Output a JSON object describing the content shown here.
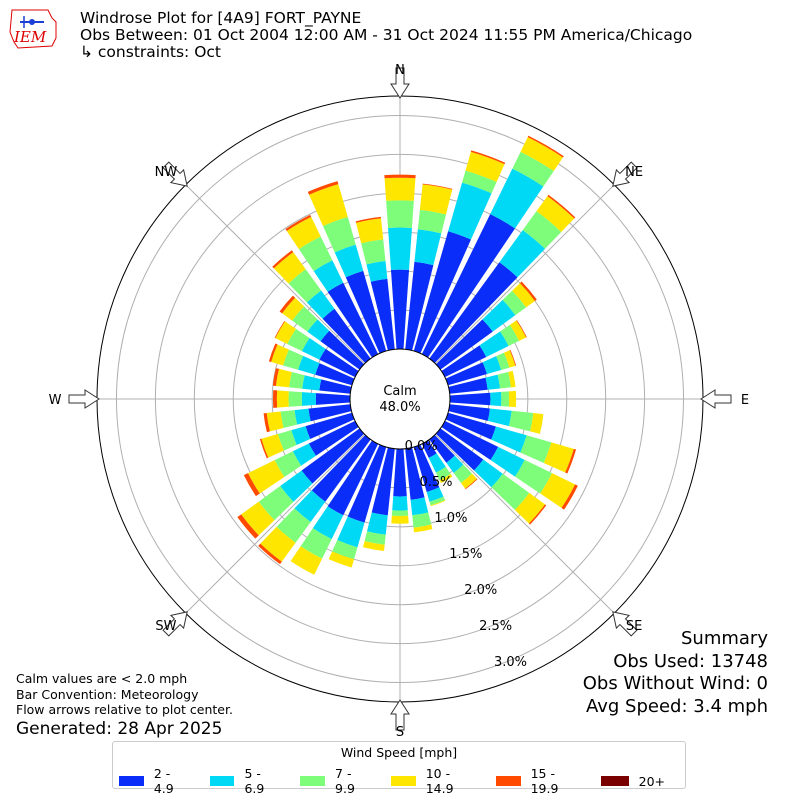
{
  "header": {
    "title": "Windrose Plot for [4A9] FORT_PAYNE",
    "obs_between": "Obs Between: 01 Oct 2004 12:00 AM - 31 Oct 2024 11:55 PM America/Chicago",
    "constraints": "↳ constraints: Oct"
  },
  "logo_text": "IEM",
  "notes": {
    "calm_values": "Calm values are < 2.0 mph",
    "bar_convention": "Bar Convention: Meteorology",
    "flow_arrows": "Flow arrows relative to plot center."
  },
  "generated": "Generated: 28 Apr 2025",
  "summary": {
    "title": "Summary",
    "obs_used": "Obs Used: 13748",
    "obs_without_wind": "Obs Without Wind: 0",
    "avg_speed": "Avg Speed: 3.4 mph"
  },
  "legend": {
    "title": "Wind Speed [mph]",
    "items": [
      {
        "label": "2 - 4.9",
        "color": "#0a2dfa"
      },
      {
        "label": "5 - 6.9",
        "color": "#00d9f5"
      },
      {
        "label": "7 - 9.9",
        "color": "#7dfd7a"
      },
      {
        "label": "10 - 14.9",
        "color": "#ffe600"
      },
      {
        "label": "15 - 19.9",
        "color": "#ff4a00"
      },
      {
        "label": "20+",
        "color": "#7a0000"
      }
    ]
  },
  "chart_data": {
    "type": "windrose",
    "calm_label": "Calm",
    "calm_value": "48.0%",
    "radial_tick_labels": [
      "0.0%",
      "0.5%",
      "1.0%",
      "1.5%",
      "2.0%",
      "2.5%",
      "3.0%"
    ],
    "radial_ticks": [
      0,
      0.5,
      1.0,
      1.5,
      2.0,
      2.5,
      3.0
    ],
    "rmax": 3.25,
    "compass_labels": [
      "N",
      "NE",
      "E",
      "SE",
      "S",
      "SW",
      "W",
      "NW"
    ],
    "speed_bins": [
      "2 - 4.9",
      "5 - 6.9",
      "7 - 9.9",
      "10 - 14.9",
      "15 - 19.9",
      "20+"
    ],
    "directions_deg": [
      0,
      10,
      20,
      30,
      40,
      50,
      60,
      70,
      80,
      90,
      100,
      110,
      120,
      130,
      140,
      150,
      160,
      170,
      180,
      190,
      200,
      210,
      220,
      230,
      240,
      250,
      260,
      270,
      280,
      290,
      300,
      310,
      320,
      330,
      340,
      350
    ],
    "cumulative": [
      [
        1.02,
        1.56,
        1.91,
        2.2,
        2.24,
        2.24
      ],
      [
        1.13,
        1.55,
        1.8,
        2.13,
        2.14,
        2.14
      ],
      [
        1.6,
        2.25,
        2.41,
        2.66,
        2.68,
        2.68
      ],
      [
        2.0,
        2.65,
        2.89,
        3.1,
        3.12,
        3.12
      ],
      [
        1.53,
        2.04,
        2.34,
        2.58,
        2.6,
        2.6
      ],
      [
        0.83,
        1.19,
        1.36,
        1.5,
        1.53,
        1.53
      ],
      [
        0.59,
        0.91,
        1.06,
        1.16,
        1.17,
        1.17
      ],
      [
        0.52,
        0.71,
        0.82,
        0.9,
        0.91,
        0.91
      ],
      [
        0.49,
        0.65,
        0.79,
        0.85,
        0.85,
        0.85
      ],
      [
        0.52,
        0.66,
        0.76,
        0.85,
        0.85,
        0.85
      ],
      [
        0.52,
        0.8,
        1.08,
        1.21,
        1.21,
        1.21
      ],
      [
        0.64,
        1.05,
        1.38,
        1.68,
        1.71,
        1.71
      ],
      [
        0.76,
        1.14,
        1.53,
        1.86,
        1.9,
        1.9
      ],
      [
        0.68,
        0.99,
        1.41,
        1.66,
        1.68,
        1.68
      ],
      [
        0.37,
        0.53,
        0.69,
        0.78,
        0.79,
        0.79
      ],
      [
        0.2,
        0.41,
        0.52,
        0.56,
        0.56,
        0.56
      ],
      [
        0.6,
        0.73,
        0.78,
        0.79,
        0.79,
        0.79
      ],
      [
        0.66,
        0.86,
        1.02,
        1.08,
        1.08,
        1.08
      ],
      [
        0.61,
        0.79,
        0.86,
        0.96,
        0.96,
        0.96
      ],
      [
        0.86,
        1.11,
        1.24,
        1.32,
        1.32,
        1.32
      ],
      [
        1.01,
        1.34,
        1.5,
        1.61,
        1.61,
        1.61
      ],
      [
        1.02,
        1.36,
        1.64,
        1.87,
        1.87,
        1.87
      ],
      [
        0.99,
        1.31,
        1.64,
        1.94,
        1.98,
        1.98
      ],
      [
        0.92,
        1.26,
        1.6,
        1.88,
        1.94,
        1.94
      ],
      [
        0.66,
        0.89,
        1.15,
        1.53,
        1.59,
        1.59
      ],
      [
        0.62,
        0.81,
        0.99,
        1.21,
        1.23,
        1.23
      ],
      [
        0.54,
        0.72,
        0.9,
        1.08,
        1.12,
        1.12
      ],
      [
        0.44,
        0.62,
        0.79,
        0.94,
        0.99,
        0.99
      ],
      [
        0.4,
        0.62,
        0.79,
        0.96,
        1.0,
        1.0
      ],
      [
        0.49,
        0.72,
        0.92,
        1.08,
        1.11,
        1.11
      ],
      [
        0.51,
        0.76,
        0.97,
        1.14,
        1.15,
        1.15
      ],
      [
        0.62,
        0.83,
        1.07,
        1.23,
        1.27,
        1.27
      ],
      [
        0.79,
        1.08,
        1.42,
        1.69,
        1.72,
        1.72
      ],
      [
        1.02,
        1.34,
        1.68,
        1.96,
        1.99,
        1.99
      ],
      [
        1.07,
        1.42,
        1.79,
        2.23,
        2.27,
        2.27
      ],
      [
        0.91,
        1.14,
        1.42,
        1.69,
        1.71,
        1.71
      ]
    ]
  }
}
